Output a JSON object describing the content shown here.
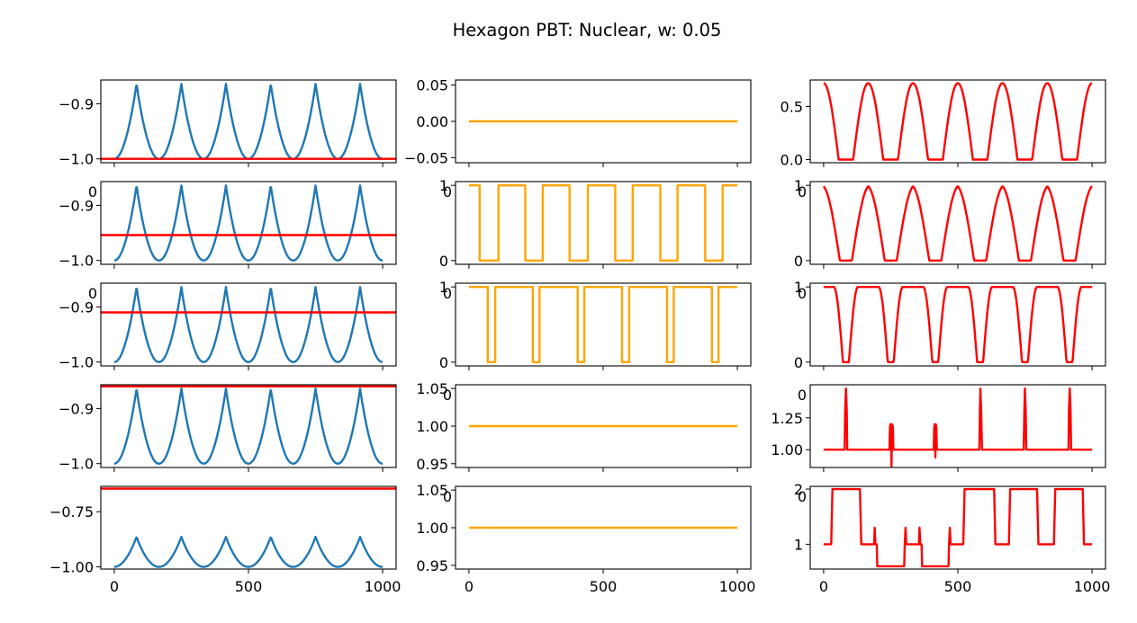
{
  "figure": {
    "title": "Hexagon PBT: Nuclear, w: 0.05"
  },
  "colors": {
    "blue": "#1f77b4",
    "red": "#ff0000",
    "orange": "#ffa500"
  },
  "chart_data": [
    {
      "type": "line",
      "row": 0,
      "col": 0,
      "xlim": [
        -50,
        1050
      ],
      "ylim": [
        -1.007,
        -0.857
      ],
      "yticks": [
        {
          "v": -0.9,
          "label": "−0.9"
        },
        {
          "v": -1.0,
          "label": "−1.0"
        }
      ],
      "xticks": [
        0,
        500,
        1000
      ],
      "show_xticklabels": false,
      "series": [
        {
          "kind": "peaks",
          "color": "blue",
          "min": -1.0,
          "max": -0.864,
          "peaks": [
            83,
            250,
            416,
            583,
            750,
            916
          ],
          "halfwidth": 83
        },
        {
          "kind": "hline",
          "color": "red",
          "y": -1.0,
          "x": [
            -50,
            1050
          ]
        }
      ]
    },
    {
      "type": "line",
      "row": 0,
      "col": 1,
      "xlim": [
        -50,
        1050
      ],
      "ylim": [
        -0.057,
        0.057
      ],
      "yticks": [
        {
          "v": 0.05,
          "label": "0.05"
        },
        {
          "v": 0.0,
          "label": "0.00"
        },
        {
          "v": -0.05,
          "label": "−0.05"
        }
      ],
      "xticks": [
        0,
        500,
        1000
      ],
      "show_xticklabels": false,
      "series": [
        {
          "kind": "hline",
          "color": "orange",
          "y": 0.0,
          "x": [
            0,
            1000
          ]
        }
      ]
    },
    {
      "type": "line",
      "row": 0,
      "col": 2,
      "xlim": [
        -50,
        1050
      ],
      "ylim": [
        -0.03,
        0.75
      ],
      "yticks": [
        {
          "v": 0.5,
          "label": "0.5"
        },
        {
          "v": 0.0,
          "label": "0.0"
        }
      ],
      "xticks": [
        0,
        500,
        1000
      ],
      "show_xticklabels": false,
      "series": [
        {
          "kind": "humps",
          "color": "red",
          "low": 0.0,
          "high": 0.72,
          "centers": [
            0,
            166,
            333,
            500,
            666,
            833,
            1000
          ],
          "width": 56
        }
      ]
    },
    {
      "type": "line",
      "row": 1,
      "col": 0,
      "xlim": [
        -50,
        1050
      ],
      "ylim": [
        -1.007,
        -0.857
      ],
      "yticks": [
        {
          "v": -0.9,
          "label": "−0.9"
        },
        {
          "v": -1.0,
          "label": "−1.0"
        }
      ],
      "xticks": [
        0,
        500,
        1000
      ],
      "show_xticklabels": false,
      "overflow_label": "0",
      "series": [
        {
          "kind": "peaks",
          "color": "blue",
          "min": -1.0,
          "max": -0.864,
          "peaks": [
            83,
            250,
            416,
            583,
            750,
            916
          ],
          "halfwidth": 83
        },
        {
          "kind": "hline",
          "color": "red",
          "y": -0.954,
          "x": [
            -50,
            1050
          ]
        }
      ]
    },
    {
      "type": "line",
      "row": 1,
      "col": 1,
      "xlim": [
        -50,
        1050
      ],
      "ylim": [
        -0.05,
        1.05
      ],
      "yticks": [
        {
          "v": 1,
          "label": "1"
        },
        {
          "v": 0,
          "label": "0"
        }
      ],
      "xticks": [
        0,
        500,
        1000
      ],
      "show_xticklabels": false,
      "overflow_label": "0",
      "series": [
        {
          "kind": "steps",
          "color": "orange",
          "points": [
            [
              0,
              1
            ],
            [
              40,
              1
            ],
            [
              40,
              0
            ],
            [
              110,
              0
            ],
            [
              110,
              1
            ],
            [
              210,
              1
            ],
            [
              210,
              0
            ],
            [
              275,
              0
            ],
            [
              275,
              1
            ],
            [
              375,
              1
            ],
            [
              375,
              0
            ],
            [
              443,
              0
            ],
            [
              443,
              1
            ],
            [
              545,
              1
            ],
            [
              545,
              0
            ],
            [
              610,
              0
            ],
            [
              610,
              1
            ],
            [
              713,
              1
            ],
            [
              713,
              0
            ],
            [
              777,
              0
            ],
            [
              777,
              1
            ],
            [
              880,
              1
            ],
            [
              880,
              0
            ],
            [
              945,
              0
            ],
            [
              945,
              1
            ],
            [
              1000,
              1
            ]
          ]
        }
      ]
    },
    {
      "type": "line",
      "row": 1,
      "col": 2,
      "xlim": [
        -50,
        1050
      ],
      "ylim": [
        -0.05,
        1.05
      ],
      "yticks": [
        {
          "v": 1,
          "label": "1"
        },
        {
          "v": 0,
          "label": "0"
        }
      ],
      "xticks": [
        0,
        500,
        1000
      ],
      "show_xticklabels": false,
      "overflow_label": "0",
      "series": [
        {
          "kind": "troughs",
          "color": "red",
          "low": 0.0,
          "high": 1.0,
          "centers": [
            83,
            250,
            416,
            583,
            750,
            916
          ],
          "width": 90
        }
      ]
    },
    {
      "type": "line",
      "row": 2,
      "col": 0,
      "xlim": [
        -50,
        1050
      ],
      "ylim": [
        -1.007,
        -0.857
      ],
      "yticks": [
        {
          "v": -0.9,
          "label": "−0.9"
        },
        {
          "v": -1.0,
          "label": "−1.0"
        }
      ],
      "xticks": [
        0,
        500,
        1000
      ],
      "show_xticklabels": false,
      "overflow_label": "0",
      "series": [
        {
          "kind": "peaks",
          "color": "blue",
          "min": -1.0,
          "max": -0.864,
          "peaks": [
            83,
            250,
            416,
            583,
            750,
            916
          ],
          "halfwidth": 83
        },
        {
          "kind": "hline",
          "color": "red",
          "y": -0.91,
          "x": [
            -50,
            1050
          ]
        }
      ]
    },
    {
      "type": "line",
      "row": 2,
      "col": 1,
      "xlim": [
        -50,
        1050
      ],
      "ylim": [
        -0.05,
        1.05
      ],
      "yticks": [
        {
          "v": 1,
          "label": "1"
        },
        {
          "v": 0,
          "label": "0"
        }
      ],
      "xticks": [
        0,
        500,
        1000
      ],
      "show_xticklabels": false,
      "overflow_label": "0",
      "series": [
        {
          "kind": "steps",
          "color": "orange",
          "points": [
            [
              0,
              1
            ],
            [
              70,
              1
            ],
            [
              70,
              0
            ],
            [
              98,
              0
            ],
            [
              98,
              1
            ],
            [
              238,
              1
            ],
            [
              238,
              0
            ],
            [
              263,
              0
            ],
            [
              263,
              1
            ],
            [
              405,
              1
            ],
            [
              405,
              0
            ],
            [
              430,
              0
            ],
            [
              430,
              1
            ],
            [
              570,
              1
            ],
            [
              570,
              0
            ],
            [
              597,
              0
            ],
            [
              597,
              1
            ],
            [
              738,
              1
            ],
            [
              738,
              0
            ],
            [
              763,
              0
            ],
            [
              763,
              1
            ],
            [
              905,
              1
            ],
            [
              905,
              0
            ],
            [
              930,
              0
            ],
            [
              930,
              1
            ],
            [
              1000,
              1
            ]
          ]
        }
      ]
    },
    {
      "type": "line",
      "row": 2,
      "col": 2,
      "xlim": [
        -50,
        1050
      ],
      "ylim": [
        -0.05,
        1.05
      ],
      "yticks": [
        {
          "v": 1,
          "label": "1"
        },
        {
          "v": 0,
          "label": "0"
        }
      ],
      "xticks": [
        0,
        500,
        1000
      ],
      "show_xticklabels": false,
      "overflow_label": "0",
      "series": [
        {
          "kind": "troughs",
          "color": "red",
          "low": 0.0,
          "high": 1.0,
          "centers": [
            83,
            250,
            416,
            583,
            750,
            916
          ],
          "width": 45
        }
      ]
    },
    {
      "type": "line",
      "row": 3,
      "col": 0,
      "xlim": [
        -50,
        1050
      ],
      "ylim": [
        -1.007,
        -0.857
      ],
      "yticks": [
        {
          "v": -0.9,
          "label": "−0.9"
        },
        {
          "v": -1.0,
          "label": "−1.0"
        }
      ],
      "xticks": [
        0,
        500,
        1000
      ],
      "show_xticklabels": false,
      "series": [
        {
          "kind": "peaks",
          "color": "blue",
          "min": -1.0,
          "max": -0.864,
          "peaks": [
            83,
            250,
            416,
            583,
            750,
            916
          ],
          "halfwidth": 83
        },
        {
          "kind": "hline",
          "color": "red",
          "y": -0.86,
          "x": [
            -50,
            1050
          ]
        }
      ]
    },
    {
      "type": "line",
      "row": 3,
      "col": 1,
      "xlim": [
        -50,
        1050
      ],
      "ylim": [
        0.945,
        1.055
      ],
      "yticks": [
        {
          "v": 1.05,
          "label": "1.05"
        },
        {
          "v": 1.0,
          "label": "1.00"
        },
        {
          "v": 0.95,
          "label": "0.95"
        }
      ],
      "xticks": [
        0,
        500,
        1000
      ],
      "show_xticklabels": false,
      "overflow_label": "0",
      "series": [
        {
          "kind": "hline",
          "color": "orange",
          "y": 1.0,
          "x": [
            0,
            1000
          ]
        }
      ]
    },
    {
      "type": "line",
      "row": 3,
      "col": 2,
      "xlim": [
        -50,
        1050
      ],
      "ylim": [
        0.86,
        1.51
      ],
      "yticks": [
        {
          "v": 1.25,
          "label": "1.25"
        },
        {
          "v": 1.0,
          "label": "1.00"
        }
      ],
      "xticks": [
        0,
        500,
        1000
      ],
      "show_xticklabels": false,
      "overflow_label": "0",
      "series": [
        {
          "kind": "points",
          "color": "red",
          "points": [
            [
              0,
              1
            ],
            [
              78,
              1
            ],
            [
              80,
              1.3
            ],
            [
              83,
              1.48
            ],
            [
              86,
              1.3
            ],
            [
              88,
              1
            ],
            [
              245,
              1
            ],
            [
              247,
              1.18
            ],
            [
              249,
              1.2
            ],
            [
              251,
              1.2
            ],
            [
              253,
              0.87
            ],
            [
              255,
              1.2
            ],
            [
              258,
              1.18
            ],
            [
              260,
              1
            ],
            [
              410,
              1
            ],
            [
              412,
              1.18
            ],
            [
              414,
              1.2
            ],
            [
              416,
              0.94
            ],
            [
              418,
              1.2
            ],
            [
              420,
              1.18
            ],
            [
              422,
              1
            ],
            [
              580,
              1
            ],
            [
              582,
              1.3
            ],
            [
              584,
              1.48
            ],
            [
              587,
              1.3
            ],
            [
              590,
              1
            ],
            [
              745,
              1
            ],
            [
              748,
              1.3
            ],
            [
              750,
              1.48
            ],
            [
              753,
              1.3
            ],
            [
              755,
              1
            ],
            [
              912,
              1
            ],
            [
              914,
              1.3
            ],
            [
              917,
              1.48
            ],
            [
              920,
              1.3
            ],
            [
              922,
              1
            ],
            [
              1000,
              1
            ]
          ]
        }
      ]
    },
    {
      "type": "line",
      "row": 4,
      "col": 0,
      "xlim": [
        -50,
        1050
      ],
      "ylim": [
        -1.01,
        -0.635
      ],
      "yticks": [
        {
          "v": -0.75,
          "label": "−0.75"
        },
        {
          "v": -1.0,
          "label": "−1.00"
        }
      ],
      "xticks": [
        0,
        500,
        1000
      ],
      "show_xticklabels": true,
      "xticklabels": [
        "0",
        "500",
        "1000"
      ],
      "series": [
        {
          "kind": "peaks",
          "color": "blue",
          "min": -1.0,
          "max": -0.864,
          "peaks": [
            83,
            250,
            416,
            583,
            750,
            916
          ],
          "halfwidth": 83
        },
        {
          "kind": "hline",
          "color": "red",
          "y": -0.645,
          "x": [
            -50,
            1050
          ]
        }
      ]
    },
    {
      "type": "line",
      "row": 4,
      "col": 1,
      "xlim": [
        -50,
        1050
      ],
      "ylim": [
        0.945,
        1.055
      ],
      "yticks": [
        {
          "v": 1.05,
          "label": "1.05"
        },
        {
          "v": 1.0,
          "label": "1.00"
        },
        {
          "v": 0.95,
          "label": "0.95"
        }
      ],
      "xticks": [
        0,
        500,
        1000
      ],
      "show_xticklabels": true,
      "xticklabels": [
        "0",
        "500",
        "1000"
      ],
      "overflow_label": "0",
      "series": [
        {
          "kind": "hline",
          "color": "orange",
          "y": 1.0,
          "x": [
            0,
            1000
          ]
        }
      ]
    },
    {
      "type": "line",
      "row": 4,
      "col": 2,
      "xlim": [
        -50,
        1050
      ],
      "ylim": [
        0.55,
        2.05
      ],
      "yticks": [
        {
          "v": 2,
          "label": "2"
        },
        {
          "v": 1,
          "label": "1"
        }
      ],
      "xticks": [
        0,
        500,
        1000
      ],
      "show_xticklabels": true,
      "xticklabels": [
        "0",
        "500",
        "1000"
      ],
      "overflow_label": "0",
      "series": [
        {
          "kind": "points",
          "color": "red",
          "points": [
            [
              0,
              1
            ],
            [
              28,
              1
            ],
            [
              33,
              2
            ],
            [
              135,
              2
            ],
            [
              140,
              1
            ],
            [
              188,
              1
            ],
            [
              190,
              1.3
            ],
            [
              193,
              1
            ],
            [
              198,
              1
            ],
            [
              200,
              0.6
            ],
            [
              300,
              0.6
            ],
            [
              302,
              1
            ],
            [
              305,
              1.3
            ],
            [
              308,
              1
            ],
            [
              355,
              1
            ],
            [
              357,
              1.3
            ],
            [
              360,
              1
            ],
            [
              365,
              1
            ],
            [
              367,
              0.6
            ],
            [
              465,
              0.6
            ],
            [
              467,
              1
            ],
            [
              470,
              1.3
            ],
            [
              473,
              1
            ],
            [
              520,
              1
            ],
            [
              525,
              2
            ],
            [
              635,
              2
            ],
            [
              640,
              1
            ],
            [
              690,
              1
            ],
            [
              695,
              2
            ],
            [
              795,
              2
            ],
            [
              800,
              1
            ],
            [
              858,
              1
            ],
            [
              863,
              2
            ],
            [
              965,
              2
            ],
            [
              970,
              1
            ],
            [
              1000,
              1
            ]
          ]
        }
      ]
    }
  ]
}
